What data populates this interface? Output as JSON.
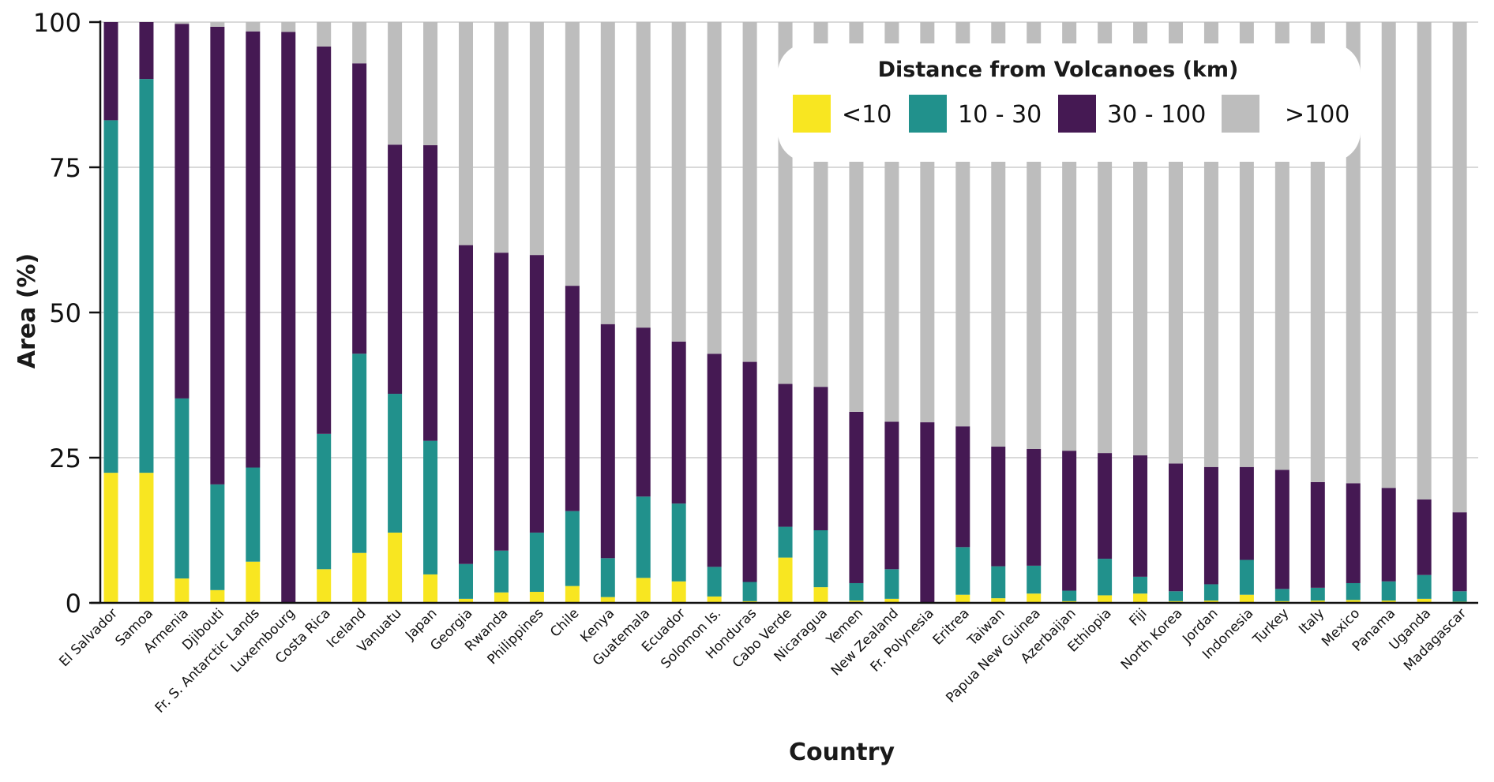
{
  "chart_data": {
    "type": "bar",
    "stacked": true,
    "title": "",
    "xlabel": "Country",
    "ylabel": "Area (%)",
    "ylim": [
      0,
      100
    ],
    "yticks": [
      0,
      25,
      50,
      75,
      100
    ],
    "grid": "horizontal",
    "legend": {
      "title": "Distance from Volcanoes (km)",
      "placement": "top-right"
    },
    "categories": [
      "El Salvador",
      "Samoa",
      "Armenia",
      "Djibouti",
      "Fr. S. Antarctic Lands",
      "Luxembourg",
      "Costa Rica",
      "Iceland",
      "Vanuatu",
      "Japan",
      "Georgia",
      "Rwanda",
      "Philippines",
      "Chile",
      "Kenya",
      "Guatemala",
      "Ecuador",
      "Solomon Is.",
      "Honduras",
      "Cabo Verde",
      "Nicaragua",
      "Yemen",
      "New Zealand",
      "Fr. Polynesia",
      "Eritrea",
      "Taiwan",
      "Papua New Guinea",
      "Azerbaijan",
      "Ethiopia",
      "Fiji",
      "North Korea",
      "Jordan",
      "Indonesia",
      "Turkey",
      "Italy",
      "Mexico",
      "Panama",
      "Uganda",
      "Madagascar"
    ],
    "series": [
      {
        "name": "<10",
        "color": "#f8e621",
        "values": [
          22.4,
          22.4,
          4.2,
          2.2,
          7.1,
          0.0,
          5.8,
          8.6,
          12.1,
          4.9,
          0.7,
          1.8,
          1.9,
          2.9,
          1.0,
          4.3,
          3.7,
          1.1,
          0.3,
          7.8,
          2.7,
          0.4,
          0.7,
          0.0,
          1.4,
          0.8,
          1.6,
          0.3,
          1.3,
          1.6,
          0.3,
          0.4,
          1.4,
          0.3,
          0.4,
          0.5,
          0.4,
          0.7,
          0.2
        ]
      },
      {
        "name": "10 - 30",
        "color": "#21918c",
        "values": [
          60.7,
          67.8,
          31.0,
          18.2,
          16.2,
          0.0,
          23.3,
          34.3,
          23.9,
          23.0,
          6.0,
          7.2,
          10.2,
          12.9,
          6.7,
          14.0,
          13.4,
          5.1,
          3.3,
          5.3,
          9.8,
          3.0,
          5.1,
          0.0,
          8.2,
          5.5,
          4.8,
          1.8,
          6.3,
          2.9,
          1.7,
          2.8,
          6.0,
          2.1,
          2.2,
          2.9,
          3.3,
          4.1,
          1.8
        ]
      },
      {
        "name": "30 - 100",
        "color": "#451953",
        "values": [
          16.9,
          9.8,
          64.5,
          78.8,
          75.1,
          98.3,
          66.7,
          50.0,
          42.9,
          50.9,
          54.9,
          51.3,
          47.8,
          38.8,
          40.3,
          29.1,
          27.9,
          36.7,
          37.9,
          24.6,
          24.7,
          29.5,
          25.4,
          31.1,
          20.8,
          20.6,
          20.1,
          24.1,
          18.2,
          20.9,
          22.0,
          20.2,
          16.0,
          20.5,
          18.2,
          17.2,
          16.1,
          13.0,
          13.6
        ]
      },
      {
        "name": ">100",
        "color": "#bdbdbd",
        "values": [
          0.0,
          0.0,
          0.3,
          0.8,
          1.6,
          1.7,
          4.2,
          7.1,
          21.1,
          21.2,
          38.4,
          39.7,
          40.1,
          45.4,
          52.0,
          52.6,
          55.0,
          57.1,
          58.5,
          62.3,
          62.8,
          67.1,
          68.8,
          68.9,
          69.6,
          73.1,
          73.5,
          73.8,
          74.2,
          74.6,
          76.0,
          76.6,
          76.6,
          77.1,
          79.2,
          79.4,
          80.2,
          82.2,
          84.4
        ]
      }
    ]
  }
}
